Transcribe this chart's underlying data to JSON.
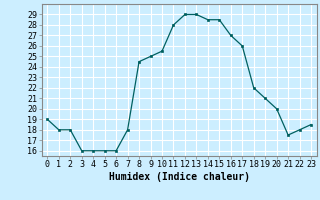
{
  "x": [
    0,
    1,
    2,
    3,
    4,
    5,
    6,
    7,
    8,
    9,
    10,
    11,
    12,
    13,
    14,
    15,
    16,
    17,
    18,
    19,
    20,
    21,
    22,
    23
  ],
  "y": [
    19,
    18,
    18,
    16,
    16,
    16,
    16,
    18,
    24.5,
    25,
    25.5,
    28,
    29,
    29,
    28.5,
    28.5,
    27,
    26,
    22,
    21,
    20,
    17.5,
    18,
    18.5
  ],
  "line_color": "#006060",
  "marker_color": "#006060",
  "bg_color": "#cceeff",
  "grid_color": "#ffffff",
  "xlabel": "Humidex (Indice chaleur)",
  "ylim": [
    15.5,
    30
  ],
  "xlim": [
    -0.5,
    23.5
  ],
  "yticks": [
    16,
    17,
    18,
    19,
    20,
    21,
    22,
    23,
    24,
    25,
    26,
    27,
    28,
    29
  ],
  "xticks": [
    0,
    1,
    2,
    3,
    4,
    5,
    6,
    7,
    8,
    9,
    10,
    11,
    12,
    13,
    14,
    15,
    16,
    17,
    18,
    19,
    20,
    21,
    22,
    23
  ],
  "xtick_labels": [
    "0",
    "1",
    "2",
    "3",
    "4",
    "5",
    "6",
    "7",
    "8",
    "9",
    "10",
    "11",
    "12",
    "13",
    "14",
    "15",
    "16",
    "17",
    "18",
    "19",
    "20",
    "21",
    "22",
    "23"
  ],
  "font_size": 6,
  "xlabel_font_size": 7
}
